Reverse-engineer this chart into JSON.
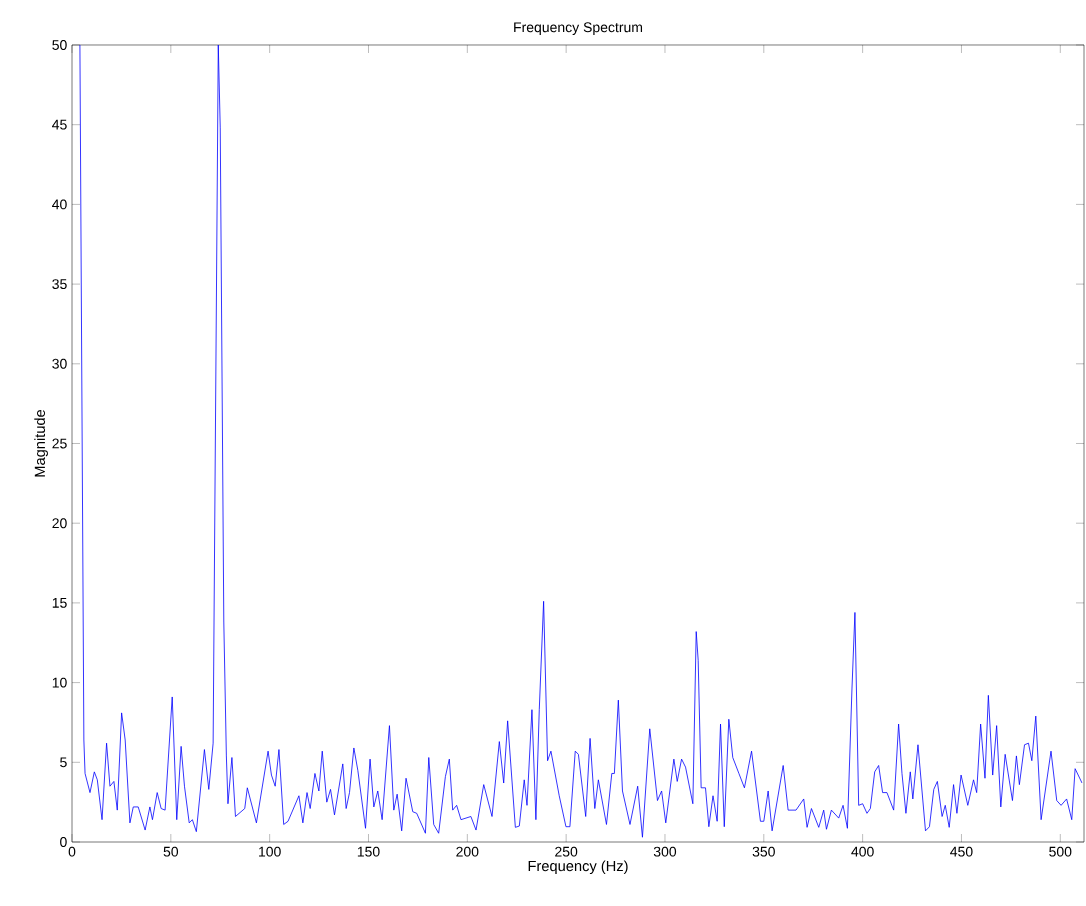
{
  "chart_data": {
    "type": "line",
    "title": "Frequency Spectrum",
    "xlabel": "Frequency (Hz)",
    "ylabel": "Magnitude",
    "xlim": [
      0,
      512
    ],
    "ylim": [
      0,
      50
    ],
    "xticks": [
      0,
      50,
      100,
      150,
      200,
      250,
      300,
      350,
      400,
      450,
      500
    ],
    "yticks": [
      0,
      5,
      10,
      15,
      20,
      25,
      30,
      35,
      40,
      45,
      50
    ],
    "color": "#0000ff",
    "x": [
      4,
      6,
      6.6,
      9.1,
      11.3,
      12.8,
      15.2,
      17.5,
      19.2,
      21.2,
      22.9,
      25.1,
      26.9,
      29.3,
      31,
      33.5,
      37,
      39.4,
      40.7,
      43.1,
      45.1,
      47.1,
      50.7,
      53,
      55.2,
      56.9,
      59.3,
      60.9,
      62.9,
      67,
      69.2,
      71.4,
      74,
      75,
      76.8,
      78.1,
      78.9,
      80.9,
      82.7,
      87.4,
      88.7,
      93.3,
      99.2,
      100.9,
      102.8,
      104.7,
      107.1,
      109.3,
      114.8,
      116.8,
      118.9,
      120.5,
      122.9,
      124.9,
      126.6,
      128.9,
      130.8,
      132.8,
      137,
      138.7,
      140.4,
      142.6,
      144.6,
      148.5,
      150.8,
      152.7,
      154.7,
      156.9,
      160.6,
      162.8,
      164.5,
      166.8,
      169,
      172.4,
      174.4,
      178.8,
      180.5,
      183,
      185.5,
      188.9,
      190.9,
      192.6,
      194.6,
      196.8,
      201.8,
      204.4,
      208.3,
      212.5,
      216.2,
      218.4,
      220.4,
      224.3,
      226.3,
      228.8,
      230.2,
      232.7,
      234.7,
      236.4,
      238.6,
      240.6,
      242.3,
      246.5,
      249.9,
      251.9,
      254.6,
      256.2,
      259.9,
      262.1,
      264.5,
      266.3,
      270.4,
      273.1,
      274.4,
      276.4,
      278.5,
      282.3,
      286.2,
      288.6,
      292.3,
      296.2,
      298.3,
      300.4,
      304.5,
      306.2,
      308.4,
      310.4,
      314.1,
      315.8,
      316.8,
      318.3,
      320.5,
      322.2,
      324.3,
      326.4,
      328.1,
      330,
      332.3,
      334.3,
      337.4,
      340.2,
      343.8,
      348.3,
      350,
      352.2,
      354.2,
      359.8,
      362.3,
      366.3,
      370.2,
      371.9,
      374.1,
      377.8,
      380.3,
      381.7,
      384.2,
      387.9,
      390.1,
      392.3,
      394.6,
      396.1,
      398,
      400,
      402.2,
      403.9,
      406.1,
      408.1,
      410.1,
      412.3,
      415.7,
      418.2,
      419.9,
      421.9,
      424.1,
      425.4,
      428,
      431.8,
      433.8,
      436,
      437.8,
      440.2,
      441.8,
      443.8,
      446,
      447.7,
      449.8,
      453.2,
      456.1,
      457.7,
      459.7,
      461.9,
      463.6,
      465.8,
      467.8,
      469.9,
      472.1,
      475.8,
      477.8,
      479.3,
      481.9,
      483.9,
      485.6,
      487.6,
      490.3,
      495.3,
      498.2,
      500.4,
      503.2,
      505.8,
      507.5,
      511
    ],
    "values": [
      50,
      6.4,
      4.3,
      3.1,
      4.4,
      3.9,
      1.4,
      6.2,
      3.5,
      3.8,
      2.0,
      8.1,
      6.4,
      1.2,
      2.2,
      2.2,
      0.75,
      2.2,
      1.4,
      3.1,
      2.1,
      2.0,
      9.1,
      1.4,
      6.0,
      3.5,
      1.2,
      1.4,
      0.65,
      5.8,
      3.3,
      6.2,
      50,
      44.8,
      13.8,
      5.4,
      2.4,
      5.3,
      1.6,
      2.1,
      3.4,
      1.2,
      5.7,
      4.2,
      3.5,
      5.8,
      1.1,
      1.3,
      2.9,
      1.2,
      3.1,
      2.1,
      4.3,
      3.2,
      5.7,
      2.5,
      3.3,
      1.7,
      4.9,
      2.1,
      3.1,
      5.9,
      4.5,
      0.86,
      5.2,
      2.2,
      3.2,
      1.4,
      7.3,
      2.0,
      3.0,
      0.7,
      4.0,
      1.9,
      1.8,
      0.55,
      5.3,
      1.1,
      0.55,
      4.1,
      5.2,
      2.0,
      2.3,
      1.4,
      1.6,
      0.75,
      3.6,
      1.6,
      6.3,
      3.7,
      7.6,
      0.92,
      1.0,
      3.9,
      2.3,
      8.3,
      1.4,
      8.3,
      15.1,
      5.1,
      5.7,
      2.9,
      0.96,
      0.96,
      5.7,
      5.5,
      1.6,
      6.5,
      2.1,
      3.9,
      1.1,
      4.3,
      4.3,
      8.9,
      3.2,
      1.1,
      3.5,
      0.3,
      7.1,
      2.6,
      3.2,
      1.2,
      5.2,
      3.8,
      5.2,
      4.7,
      2.4,
      13.2,
      11.4,
      3.4,
      3.4,
      0.96,
      2.9,
      1.3,
      7.4,
      0.96,
      7.7,
      5.3,
      4.3,
      3.4,
      5.7,
      1.3,
      1.3,
      3.2,
      0.7,
      4.8,
      2.0,
      2.0,
      2.7,
      0.92,
      2.1,
      0.92,
      2.0,
      0.8,
      2.0,
      1.5,
      2.3,
      0.86,
      9.6,
      14.4,
      2.3,
      2.4,
      1.8,
      2.1,
      4.4,
      4.8,
      3.1,
      3.1,
      2.0,
      7.4,
      4.3,
      1.8,
      4.4,
      2.7,
      6.1,
      0.7,
      0.96,
      3.3,
      3.8,
      1.6,
      2.3,
      0.92,
      3.6,
      1.8,
      4.2,
      2.3,
      3.9,
      3.1,
      7.4,
      4.0,
      9.2,
      4.2,
      7.3,
      2.2,
      5.5,
      2.6,
      5.4,
      3.6,
      6.1,
      6.2,
      5.1,
      7.9,
      1.4,
      5.7,
      2.6,
      2.3,
      2.7,
      1.4,
      4.6,
      3.7
    ]
  }
}
